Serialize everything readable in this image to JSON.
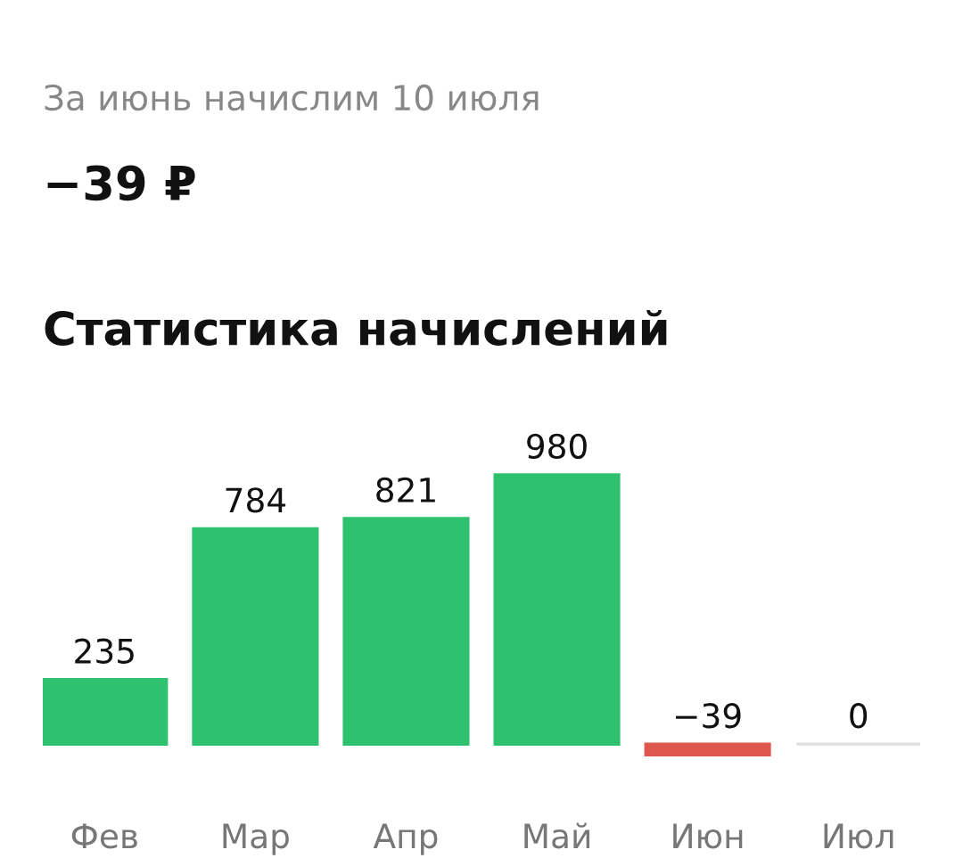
{
  "chart_data": {
    "type": "bar",
    "title": "Статистика начислений",
    "annotations": [
      "За июнь начислим 10 июля",
      "−39 ₽"
    ],
    "categories": [
      "Фев",
      "Мар",
      "Апр",
      "Май",
      "Июн",
      "Июл"
    ],
    "values": [
      235,
      784,
      821,
      980,
      -39,
      0
    ],
    "colors": [
      "#2ec26e",
      "#2ec26e",
      "#2ec26e",
      "#2ec26e",
      "#e0574f",
      "#e0e0e0"
    ],
    "data_labels": true,
    "grid": false,
    "legend": false
  }
}
